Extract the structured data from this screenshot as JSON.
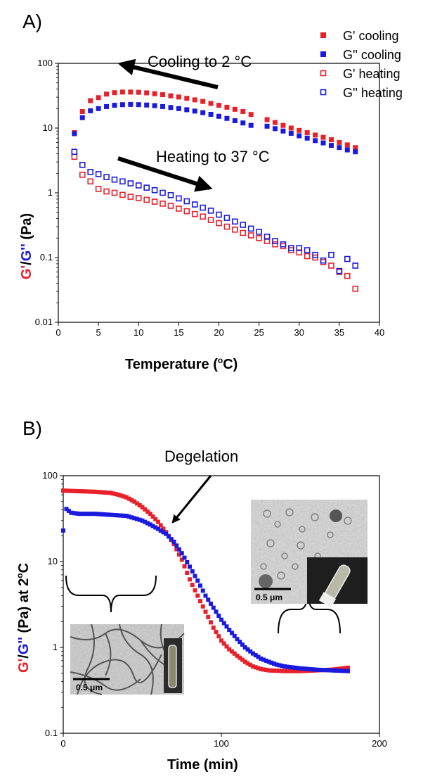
{
  "chart_data": [
    {
      "type": "scatter",
      "panel_label": "A)",
      "xlabel": "Temperature (°C)",
      "xlabel_parts": [
        "Temperature (",
        "o",
        "C)"
      ],
      "ylabel_parts": [
        {
          "text": "G'",
          "color": "#e8202a"
        },
        {
          "text": "/",
          "color": "#000000"
        },
        {
          "text": "G''",
          "color": "#1a1adf"
        },
        {
          "text": " (Pa)",
          "color": "#000000"
        }
      ],
      "xlim": [
        0,
        40
      ],
      "ylim": [
        0.01,
        100
      ],
      "y_scale": "log",
      "x_ticks": [
        "0",
        "5",
        "10",
        "15",
        "20",
        "25",
        "30",
        "35",
        "40"
      ],
      "x_tick_values": [
        0,
        5,
        10,
        15,
        20,
        25,
        30,
        35,
        40
      ],
      "y_ticks": [
        "0.01",
        "0.1",
        "1",
        "10",
        "100"
      ],
      "y_tick_values": [
        0.01,
        0.1,
        1,
        10,
        100
      ],
      "legend_position": "top-right",
      "annotations": [
        {
          "text": "Cooling to 2 °C",
          "arrow": "pointing left"
        },
        {
          "text": "Heating to 37 °C",
          "arrow": "pointing right"
        }
      ],
      "series": [
        {
          "name": "G' cooling",
          "color": "#e8202a",
          "marker": "filled-square",
          "x": [
            37,
            36,
            35,
            34,
            33,
            32,
            31,
            30,
            29,
            28,
            27,
            26,
            24,
            23,
            22,
            21,
            20,
            19,
            18,
            17,
            16,
            15,
            14,
            13,
            12,
            11,
            10,
            9,
            8,
            7,
            6,
            5,
            4,
            3,
            2
          ],
          "y": [
            5.0,
            5.5,
            6.0,
            6.6,
            7.2,
            7.8,
            8.5,
            9.2,
            10.0,
            11.0,
            12.2,
            13.5,
            16.2,
            18.0,
            19.5,
            21.0,
            22.5,
            24.0,
            25.8,
            27.3,
            28.8,
            30.2,
            31.5,
            32.8,
            34.0,
            35.0,
            35.7,
            36.0,
            36.0,
            35.2,
            33.5,
            29.5,
            26.5,
            18.0,
            8.5
          ]
        },
        {
          "name": "G'' cooling",
          "color": "#1a1adf",
          "marker": "filled-square",
          "x": [
            37,
            36,
            35,
            34,
            33,
            32,
            31,
            30,
            29,
            28,
            27,
            26,
            24,
            23,
            22,
            21,
            20,
            19,
            18,
            17,
            16,
            15,
            14,
            13,
            12,
            11,
            10,
            9,
            8,
            7,
            6,
            5,
            4,
            3,
            2
          ],
          "y": [
            4.3,
            4.6,
            5.0,
            5.4,
            5.9,
            6.4,
            7.0,
            7.6,
            8.3,
            9.0,
            9.8,
            10.7,
            11.0,
            12.0,
            13.0,
            14.1,
            15.2,
            16.3,
            17.3,
            18.3,
            19.2,
            20.0,
            20.8,
            21.5,
            22.2,
            22.7,
            23.0,
            23.2,
            23.0,
            22.5,
            21.5,
            20.0,
            18.5,
            14.5,
            8.2
          ]
        },
        {
          "name": "G' heating",
          "color": "#e8202a",
          "marker": "open-square",
          "x": [
            2,
            3,
            4,
            5,
            6,
            7,
            8,
            9,
            10,
            11,
            12,
            13,
            14,
            15,
            16,
            17,
            18,
            19,
            20,
            21,
            22,
            23,
            24,
            25,
            26,
            27,
            28,
            29,
            30,
            31,
            32,
            33,
            34,
            35,
            36,
            37
          ],
          "y": [
            3.6,
            1.9,
            1.5,
            1.15,
            1.05,
            1.0,
            0.93,
            0.87,
            0.83,
            0.78,
            0.73,
            0.68,
            0.63,
            0.57,
            0.52,
            0.47,
            0.43,
            0.38,
            0.34,
            0.3,
            0.27,
            0.24,
            0.22,
            0.2,
            0.18,
            0.16,
            0.15,
            0.13,
            0.12,
            0.105,
            0.1,
            0.085,
            0.075,
            0.06,
            0.052,
            0.033
          ]
        },
        {
          "name": "G'' heating",
          "color": "#1a1adf",
          "marker": "open-square",
          "x": [
            2,
            3,
            4,
            5,
            6,
            7,
            8,
            9,
            10,
            11,
            12,
            13,
            14,
            15,
            16,
            17,
            18,
            19,
            20,
            21,
            22,
            23,
            24,
            25,
            26,
            27,
            28,
            29,
            30,
            31,
            32,
            33,
            34,
            35,
            36,
            37
          ],
          "y": [
            4.3,
            2.7,
            2.1,
            1.95,
            1.75,
            1.6,
            1.5,
            1.4,
            1.3,
            1.2,
            1.1,
            1.0,
            0.92,
            0.82,
            0.74,
            0.66,
            0.59,
            0.53,
            0.46,
            0.41,
            0.36,
            0.32,
            0.28,
            0.25,
            0.21,
            0.18,
            0.16,
            0.14,
            0.14,
            0.13,
            0.11,
            0.09,
            0.11,
            0.062,
            0.095,
            0.075
          ]
        }
      ]
    },
    {
      "type": "scatter",
      "panel_label": "B)",
      "xlabel": "Time (min)",
      "ylabel_parts": [
        {
          "text": "G'",
          "color": "#e8202a"
        },
        {
          "text": "/",
          "color": "#000000"
        },
        {
          "text": "G''",
          "color": "#1a1adf"
        },
        {
          "text": " (Pa) at 2",
          "color": "#000000"
        },
        {
          "text": "o",
          "color": "#000000",
          "sup": true
        },
        {
          "text": "C",
          "color": "#000000"
        }
      ],
      "xlim": [
        0,
        200
      ],
      "ylim": [
        0.1,
        100
      ],
      "y_scale": "log",
      "x_ticks": [
        "0",
        "100",
        "200"
      ],
      "x_tick_values": [
        0,
        100,
        200
      ],
      "y_ticks": [
        "0.1",
        "1",
        "10",
        "100"
      ],
      "y_tick_values": [
        0.1,
        1,
        10,
        100
      ],
      "annotations": [
        {
          "text": "Degelation",
          "arrow": "pointing to crossover near 68 min"
        }
      ],
      "insets": [
        {
          "description": "micrograph",
          "scale_bar": "0.5 μm"
        },
        {
          "description": "micrograph",
          "scale_bar": "0.5 μm"
        }
      ],
      "series": [
        {
          "name": "G'",
          "color": "#e8202a",
          "marker": "filled-square",
          "x": [
            0,
            10,
            20,
            30,
            35,
            40,
            45,
            50,
            55,
            60,
            65,
            70,
            75,
            80,
            85,
            90,
            95,
            100,
            105,
            110,
            115,
            120,
            125,
            130,
            140,
            150,
            160,
            170,
            180
          ],
          "y": [
            67,
            66,
            65,
            63,
            60,
            56,
            50,
            43,
            36,
            29,
            22,
            16,
            10.5,
            6.2,
            4.0,
            2.6,
            1.7,
            1.2,
            0.95,
            0.8,
            0.68,
            0.6,
            0.56,
            0.54,
            0.53,
            0.53,
            0.54,
            0.55,
            0.58
          ]
        },
        {
          "name": "G''",
          "color": "#1a1adf",
          "marker": "filled-square",
          "x": [
            0,
            2,
            5,
            10,
            20,
            30,
            40,
            45,
            50,
            55,
            60,
            65,
            70,
            75,
            80,
            85,
            90,
            95,
            100,
            105,
            110,
            115,
            120,
            125,
            130,
            135,
            140,
            150,
            160,
            170,
            180
          ],
          "y": [
            23,
            41,
            37,
            36,
            36,
            35,
            34,
            32,
            30,
            27,
            24,
            21,
            17,
            12.5,
            8.7,
            6.0,
            4.0,
            2.9,
            2.1,
            1.6,
            1.25,
            1.0,
            0.85,
            0.74,
            0.68,
            0.63,
            0.6,
            0.57,
            0.55,
            0.54,
            0.53
          ]
        }
      ]
    }
  ]
}
